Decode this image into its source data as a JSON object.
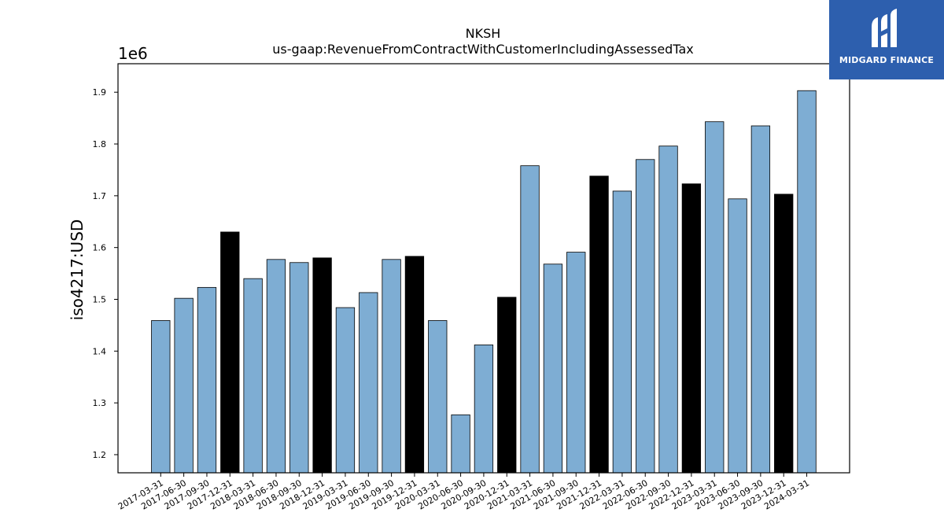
{
  "chart_data": {
    "type": "bar",
    "title": "NKSH",
    "subtitle": "us-gaap:RevenueFromContractWithCustomerIncludingAssessedTax",
    "xlabel": "",
    "ylabel": "iso4217:USD",
    "offset_label": "1e6",
    "ylim": [
      1.165,
      1.955
    ],
    "yticks": [
      1.2,
      1.3,
      1.4,
      1.5,
      1.6,
      1.7,
      1.8,
      1.9
    ],
    "grid": false,
    "colors": {
      "quarter": "#7eadd3",
      "year_end": "#000000",
      "edge": "#000000"
    },
    "categories": [
      "2017-03-31",
      "2017-06-30",
      "2017-09-30",
      "2017-12-31",
      "2018-03-31",
      "2018-06-30",
      "2018-09-30",
      "2018-12-31",
      "2019-03-31",
      "2019-06-30",
      "2019-09-30",
      "2019-12-31",
      "2020-03-31",
      "2020-06-30",
      "2020-09-30",
      "2020-12-31",
      "2021-03-31",
      "2021-06-30",
      "2021-09-30",
      "2021-12-31",
      "2022-03-31",
      "2022-06-30",
      "2022-09-30",
      "2022-12-31",
      "2023-03-31",
      "2023-06-30",
      "2023-09-30",
      "2023-12-31",
      "2024-03-31"
    ],
    "values": [
      1.459,
      1.502,
      1.523,
      1.63,
      1.54,
      1.577,
      1.571,
      1.58,
      1.484,
      1.513,
      1.577,
      1.583,
      1.459,
      1.277,
      1.412,
      1.504,
      1.758,
      1.568,
      1.591,
      1.738,
      1.709,
      1.77,
      1.796,
      1.723,
      1.843,
      1.694,
      1.835,
      1.703,
      1.903
    ]
  },
  "logo": {
    "text": "MIDGARD FINANCE",
    "icon": "midgard-logo-icon"
  }
}
